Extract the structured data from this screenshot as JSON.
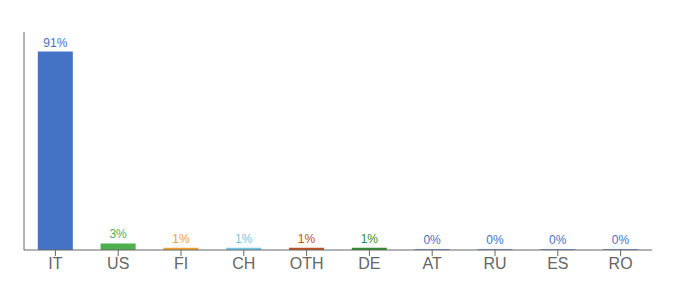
{
  "chart_data": {
    "type": "bar",
    "categories": [
      "IT",
      "US",
      "FI",
      "CH",
      "OTH",
      "DE",
      "AT",
      "RU",
      "ES",
      "RO"
    ],
    "values": [
      91,
      3,
      1,
      1,
      1,
      1,
      0.3,
      0.3,
      0.3,
      0.3
    ],
    "value_labels": [
      "91%",
      "3%",
      "1%",
      "1%",
      "1%",
      "1%",
      "0%",
      "0%",
      "0%",
      "0%"
    ],
    "data_labels": true,
    "colors": [
      "#4472c4",
      "#4db04d",
      "#f0a030",
      "#70c8e8",
      "#c05020",
      "#2e8b2e",
      "#4472c4",
      "#4472c4",
      "#4472c4",
      "#4472c4"
    ],
    "ylim": [
      0,
      100
    ],
    "yticks": [],
    "tick_labels": "x",
    "grid": false
  }
}
